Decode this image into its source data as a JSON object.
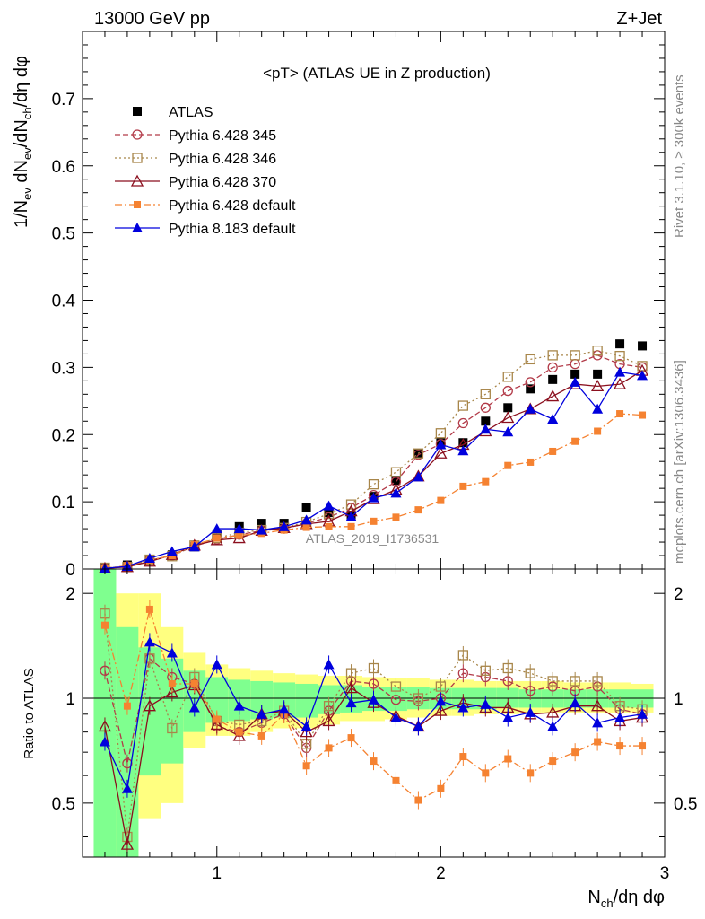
{
  "header": {
    "left": "13000 GeV pp",
    "right": "Z+Jet",
    "title": "<pT> (ATLAS UE in Z production)",
    "watermark": "ATLAS_2019_I1736531",
    "side_top": "Rivet 3.1.10, ≥ 300k events",
    "side_bottom": "mcplots.cern.ch [arXiv:1306.3436]"
  },
  "colors": {
    "atlas": "#000000",
    "p345": "#b23a48",
    "p346": "#a8864a",
    "p370": "#8b0f1e",
    "p6def": "#f58231",
    "p8def": "#0000dd",
    "band_green": "#7fff8f",
    "band_yellow": "#ffff80"
  },
  "chart_data": {
    "type": "scatter",
    "xlabel": "N_ch/dη dφ",
    "ylabel": "1/N_ev dN_ev/dN_ch/dη dφ",
    "ratio_ylabel": "Ratio to ATLAS",
    "xlim": [
      0.4,
      3.0
    ],
    "ylim": [
      0,
      0.8
    ],
    "ratio_ylim": [
      0.35,
      2.35
    ],
    "x_ticks": [
      "1",
      "2",
      "3"
    ],
    "y_ticks": [
      "0",
      "0.1",
      "0.2",
      "0.3",
      "0.4",
      "0.5",
      "0.6",
      "0.7"
    ],
    "ratio_ticks": [
      "0.5",
      "1",
      "2"
    ],
    "x": [
      0.5,
      0.6,
      0.7,
      0.8,
      0.9,
      1.0,
      1.1,
      1.2,
      1.3,
      1.4,
      1.5,
      1.6,
      1.7,
      1.8,
      1.9,
      2.0,
      2.1,
      2.2,
      2.3,
      2.4,
      2.5,
      2.6,
      2.7,
      2.8,
      2.9
    ],
    "series": [
      {
        "name": "ATLAS",
        "key": "atlas",
        "marker": "square-filled",
        "dash": "none",
        "values": [
          0.001,
          0.006,
          0.012,
          0.021,
          0.033,
          0.052,
          0.063,
          0.068,
          0.068,
          0.092,
          0.084,
          0.08,
          0.108,
          0.132,
          0.172,
          0.188,
          0.188,
          0.22,
          0.24,
          0.268,
          0.282,
          0.29,
          0.29,
          0.335,
          0.332
        ],
        "ratio": [
          1,
          1,
          1,
          1,
          1,
          1,
          1,
          1,
          1,
          1,
          1,
          1,
          1,
          1,
          1,
          1,
          1,
          1,
          1,
          1,
          1,
          1,
          1,
          1,
          1
        ]
      },
      {
        "name": "Pythia 6.428 345",
        "key": "p345",
        "marker": "circle-open",
        "dash": "6,3",
        "values": [
          0.001,
          0.004,
          0.013,
          0.02,
          0.034,
          0.044,
          0.051,
          0.057,
          0.06,
          0.068,
          0.077,
          0.091,
          0.11,
          0.13,
          0.17,
          0.186,
          0.217,
          0.24,
          0.265,
          0.278,
          0.3,
          0.305,
          0.318,
          0.305,
          0.3
        ],
        "ratio": [
          1.2,
          0.65,
          1.3,
          1.15,
          1.1,
          0.83,
          0.8,
          0.85,
          0.9,
          0.72,
          0.92,
          1.12,
          1.1,
          0.99,
          0.98,
          1.0,
          1.18,
          1.15,
          1.12,
          1.05,
          1.08,
          1.05,
          1.08,
          0.93,
          0.9
        ]
      },
      {
        "name": "Pythia 6.428 346",
        "key": "p346",
        "marker": "square-open",
        "dash": "2,3",
        "values": [
          0.002,
          0.003,
          0.014,
          0.019,
          0.035,
          0.046,
          0.054,
          0.058,
          0.061,
          0.07,
          0.082,
          0.096,
          0.126,
          0.144,
          0.172,
          0.202,
          0.243,
          0.26,
          0.286,
          0.312,
          0.318,
          0.318,
          0.325,
          0.317,
          0.302
        ],
        "ratio": [
          1.75,
          0.4,
          1.3,
          0.82,
          1.15,
          0.86,
          0.84,
          0.86,
          0.92,
          0.74,
          0.95,
          1.18,
          1.22,
          1.08,
          1.0,
          1.08,
          1.33,
          1.2,
          1.22,
          1.18,
          1.12,
          1.12,
          1.12,
          0.95,
          0.93
        ]
      },
      {
        "name": "Pythia 6.428 370",
        "key": "p370",
        "marker": "triangle-open",
        "dash": "none",
        "values": [
          0.001,
          0.003,
          0.011,
          0.021,
          0.035,
          0.043,
          0.046,
          0.057,
          0.061,
          0.067,
          0.071,
          0.086,
          0.104,
          0.118,
          0.138,
          0.172,
          0.185,
          0.205,
          0.225,
          0.238,
          0.257,
          0.275,
          0.272,
          0.275,
          0.295
        ],
        "ratio": [
          0.83,
          0.38,
          0.95,
          1.04,
          1.09,
          0.84,
          0.78,
          0.9,
          0.92,
          0.8,
          0.86,
          1.07,
          0.97,
          0.89,
          0.83,
          0.92,
          0.97,
          0.94,
          0.94,
          0.9,
          0.91,
          0.95,
          0.95,
          0.86,
          0.88
        ]
      },
      {
        "name": "Pythia 6.428 default",
        "key": "p6def",
        "marker": "square-filled-small",
        "dash": "8,3,2,3",
        "values": [
          0.001,
          0.005,
          0.013,
          0.02,
          0.036,
          0.046,
          0.05,
          0.053,
          0.058,
          0.062,
          0.063,
          0.063,
          0.071,
          0.077,
          0.088,
          0.102,
          0.123,
          0.13,
          0.154,
          0.159,
          0.175,
          0.19,
          0.205,
          0.231,
          0.229
        ],
        "ratio": [
          1.62,
          0.95,
          1.8,
          1.1,
          1.1,
          0.87,
          0.8,
          0.78,
          0.9,
          0.64,
          0.72,
          0.77,
          0.66,
          0.58,
          0.51,
          0.55,
          0.68,
          0.61,
          0.67,
          0.61,
          0.66,
          0.7,
          0.75,
          0.73,
          0.73
        ]
      },
      {
        "name": "Pythia 8.183 default",
        "key": "p8def",
        "marker": "triangle-filled",
        "dash": "none",
        "values": [
          0.001,
          0.004,
          0.016,
          0.026,
          0.033,
          0.06,
          0.06,
          0.058,
          0.063,
          0.073,
          0.094,
          0.078,
          0.106,
          0.113,
          0.137,
          0.185,
          0.176,
          0.208,
          0.204,
          0.238,
          0.223,
          0.278,
          0.238,
          0.293,
          0.288
        ],
        "ratio": [
          0.75,
          0.55,
          1.45,
          1.35,
          0.94,
          1.25,
          0.95,
          0.9,
          0.93,
          0.83,
          1.25,
          0.97,
          0.99,
          0.88,
          0.83,
          0.98,
          0.94,
          0.96,
          0.88,
          0.91,
          0.83,
          0.97,
          0.85,
          0.88,
          0.9
        ]
      }
    ],
    "bands": {
      "x_low": [
        0.45,
        0.55,
        0.65,
        0.75,
        0.85,
        0.95,
        1.05,
        1.15,
        1.25,
        1.35,
        1.45,
        1.55,
        1.65,
        1.75,
        1.85,
        1.95,
        2.05,
        2.15,
        2.25,
        2.35,
        2.45,
        2.55,
        2.65,
        2.75,
        2.85
      ],
      "x_high": [
        0.55,
        0.65,
        0.75,
        0.85,
        0.95,
        1.05,
        1.15,
        1.25,
        1.35,
        1.45,
        1.55,
        1.65,
        1.75,
        1.85,
        1.95,
        2.05,
        2.15,
        2.25,
        2.35,
        2.45,
        2.55,
        2.65,
        2.75,
        2.85,
        2.95
      ],
      "yellow_lo": [
        0.35,
        0.35,
        0.45,
        0.5,
        0.72,
        0.78,
        0.78,
        0.8,
        0.82,
        0.82,
        0.84,
        0.86,
        0.86,
        0.87,
        0.88,
        0.89,
        0.89,
        0.9,
        0.9,
        0.91,
        0.91,
        0.91,
        0.91,
        0.91,
        0.91
      ],
      "yellow_hi": [
        2.35,
        2.0,
        2.0,
        1.6,
        1.35,
        1.25,
        1.22,
        1.2,
        1.18,
        1.17,
        1.16,
        1.16,
        1.15,
        1.14,
        1.14,
        1.13,
        1.13,
        1.12,
        1.12,
        1.12,
        1.12,
        1.11,
        1.11,
        1.11,
        1.1
      ],
      "green_lo": [
        0.35,
        0.35,
        0.6,
        0.65,
        0.8,
        0.85,
        0.86,
        0.87,
        0.88,
        0.88,
        0.9,
        0.91,
        0.92,
        0.92,
        0.93,
        0.93,
        0.93,
        0.93,
        0.94,
        0.94,
        0.94,
        0.94,
        0.94,
        0.94,
        0.94
      ],
      "green_hi": [
        2.35,
        1.6,
        1.4,
        1.3,
        1.2,
        1.15,
        1.13,
        1.12,
        1.11,
        1.1,
        1.09,
        1.09,
        1.08,
        1.08,
        1.08,
        1.07,
        1.07,
        1.07,
        1.07,
        1.06,
        1.06,
        1.06,
        1.06,
        1.06,
        1.06
      ]
    }
  }
}
